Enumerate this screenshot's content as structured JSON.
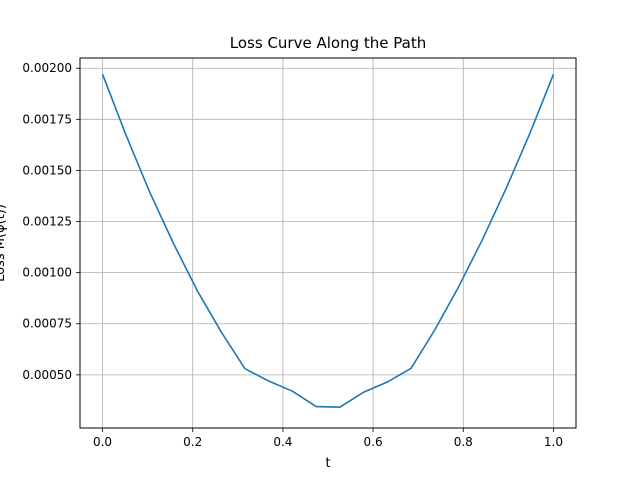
{
  "chart_data": {
    "type": "line",
    "title": "Loss Curve Along the Path",
    "xlabel": "t",
    "ylabel": "Loss M(φ(t))",
    "xlim": [
      -0.05,
      1.05
    ],
    "ylim": [
      0.00024,
      0.00256
    ],
    "xticks": [
      0.0,
      0.2,
      0.4,
      0.6,
      0.8,
      1.0
    ],
    "xtick_labels": [
      "0.0",
      "0.2",
      "0.4",
      "0.6",
      "0.8",
      "1.0"
    ],
    "yticks": [
      0.0005,
      0.00075,
      0.001,
      0.00125,
      0.0015,
      0.00175,
      0.002
    ],
    "ytick_labels": [
      "0.00050",
      "0.00075",
      "0.00100",
      "0.00125",
      "0.00150",
      "0.00175",
      "0.00200"
    ],
    "grid": true,
    "series": [
      {
        "color": "#1f77b4",
        "x": [
          0.0,
          0.0526,
          0.1053,
          0.1579,
          0.2105,
          0.2632,
          0.3158,
          0.3684,
          0.4211,
          0.4737,
          0.5263,
          0.5789,
          0.6316,
          0.6842,
          0.7368,
          0.7895,
          0.8421,
          0.8947,
          0.9474,
          1.0
        ],
        "y": [
          0.00197,
          0.00167,
          0.00139,
          0.00114,
          0.00091,
          0.00071,
          0.00053,
          0.00047,
          0.00042,
          0.000345,
          0.000342,
          0.000415,
          0.000465,
          0.000532,
          0.00072,
          0.00093,
          0.00116,
          0.00141,
          0.00168,
          0.00197
        ]
      }
    ]
  }
}
